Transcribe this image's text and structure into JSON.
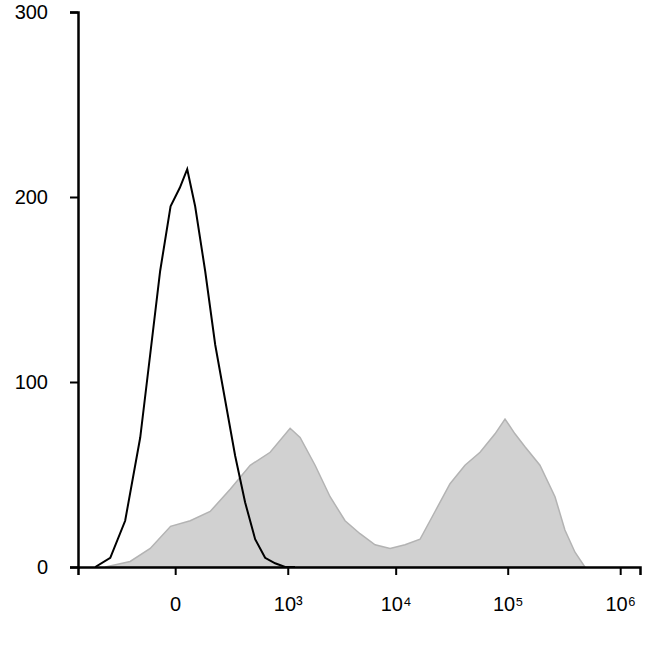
{
  "chart_data": {
    "type": "area",
    "log": "x",
    "xlim": [
      -700,
      1500000
    ],
    "xticks": [
      0,
      {
        "value": 1000,
        "label": "10³"
      },
      {
        "value": 10000,
        "label": "10⁴"
      },
      {
        "value": 100000,
        "label": "10⁵"
      },
      {
        "value": 1000000,
        "label": "10⁶"
      }
    ],
    "ylim": [
      0,
      300
    ],
    "yticks": [
      0,
      100,
      200,
      300
    ],
    "series": [
      {
        "type": "area",
        "color": "#b3b3b3",
        "x": [
          -353,
          -168,
          -74,
          -11,
          40,
          116,
          231,
          404,
          664,
          1055,
          1319,
          1832,
          2531,
          3479,
          4765,
          6521,
          8906,
          12130,
          16530,
          22510,
          30640,
          41650,
          56730,
          77150,
          94600,
          116000,
          142400,
          193500,
          263300,
          322600,
          396500,
          486000
        ],
        "values": [
          0,
          3,
          10,
          22,
          25,
          30,
          42,
          55,
          62,
          75,
          70,
          55,
          38,
          25,
          18,
          12,
          10,
          12,
          15,
          30,
          45,
          55,
          62,
          72,
          80,
          72,
          65,
          55,
          38,
          20,
          8,
          0
        ]
      },
      {
        "type": "line",
        "color": "#000000",
        "x": [
          -459,
          -308,
          -198,
          -116,
          -74,
          -40,
          -11,
          11,
          31,
          56,
          94,
          141,
          198,
          268,
          353,
          459,
          588,
          747,
          941,
          1177
        ],
        "values": [
          0,
          5,
          25,
          70,
          115,
          160,
          195,
          205,
          215,
          195,
          160,
          120,
          90,
          60,
          35,
          15,
          5,
          2,
          0,
          0
        ]
      }
    ]
  }
}
